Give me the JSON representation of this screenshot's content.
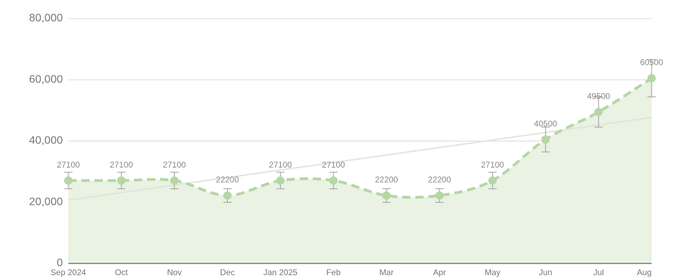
{
  "chart_data": {
    "type": "line",
    "categories": [
      "Sep 2024",
      "Oct",
      "Nov",
      "Dec",
      "Jan 2025",
      "Feb",
      "Mar",
      "Apr",
      "May",
      "Jun",
      "Jul",
      "Aug"
    ],
    "series": [
      {
        "color": "#b5d6a5",
        "values": [
          27100,
          27100,
          27100,
          22200,
          27100,
          27100,
          22200,
          22200,
          27100,
          40500,
          49500,
          60500
        ],
        "errors": [
          2710,
          2710,
          2710,
          2220,
          2710,
          2710,
          2220,
          2220,
          2710,
          4050,
          4950,
          6050
        ]
      }
    ],
    "trendline": {
      "color": "#dfe6d6",
      "values": [
        20700,
        47700
      ]
    },
    "area_color": "#e9f2e3",
    "ylim": [
      0,
      80000
    ],
    "yticks": [
      0,
      {
        "value": 20000,
        "label": "20,000"
      },
      {
        "value": 40000,
        "label": "40,000"
      },
      {
        "value": 60000,
        "label": "60,000"
      },
      {
        "value": 80000,
        "label": "80,000"
      }
    ],
    "grid": true
  }
}
